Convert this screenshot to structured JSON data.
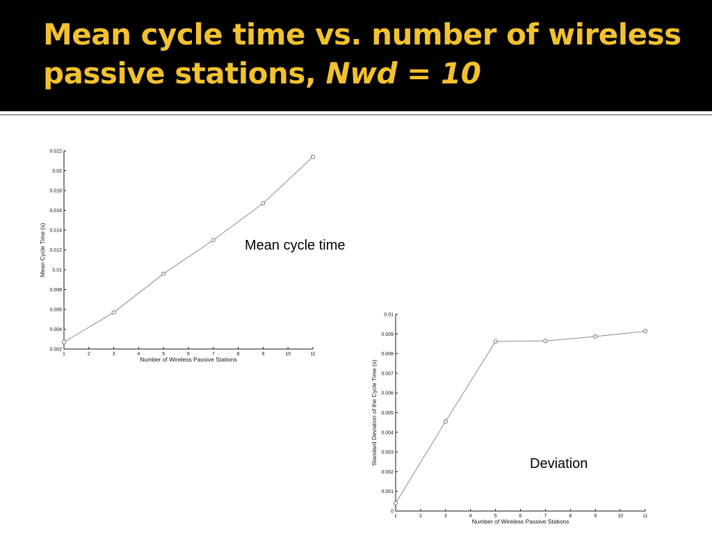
{
  "slide": {
    "title_main": "Mean cycle time vs. number of wireless passive stations,",
    "title_italic": "Nwd = 10"
  },
  "callouts": {
    "mean": "Mean cycle time",
    "deviation": "Deviation"
  },
  "colors": {
    "title": "#f2c12e",
    "background": "#000000",
    "plot_line": "#8a8a8a"
  },
  "chart_data": [
    {
      "type": "line",
      "xlabel": "Number of Wireless Passive Stations",
      "ylabel": "Mean Cycle Time (s)",
      "xlim": [
        1,
        11
      ],
      "ylim": [
        0.002,
        0.022
      ],
      "xticks": [
        "1",
        "2",
        "3",
        "4",
        "5",
        "6",
        "7",
        "8",
        "9",
        "10",
        "11"
      ],
      "yticks": [
        "0.002",
        "0.004",
        "0.006",
        "0.008",
        "0.01",
        "0.012",
        "0.014",
        "0.016",
        "0.018",
        "0.02",
        "0.022"
      ],
      "grid": false,
      "x": [
        1,
        3,
        5,
        7,
        9,
        11
      ],
      "y": [
        0.0027,
        0.0057,
        0.0096,
        0.013,
        0.0167,
        0.0214
      ]
    },
    {
      "type": "line",
      "xlabel": "Number of Wireless Passive Stations",
      "ylabel": "Standard Deviation of the Cycle Time (s)",
      "xlim": [
        1,
        11
      ],
      "ylim": [
        0,
        0.01
      ],
      "xticks": [
        "1",
        "2",
        "3",
        "4",
        "5",
        "6",
        "7",
        "8",
        "9",
        "10",
        "11"
      ],
      "yticks": [
        "0",
        "0.001",
        "0.002",
        "0.003",
        "0.004",
        "0.005",
        "0.006",
        "0.007",
        "0.008",
        "0.009",
        "0.01"
      ],
      "grid": false,
      "x": [
        1,
        3,
        5,
        7,
        9,
        11
      ],
      "y": [
        0.0004,
        0.00455,
        0.00862,
        0.00865,
        0.00887,
        0.00914
      ]
    }
  ]
}
